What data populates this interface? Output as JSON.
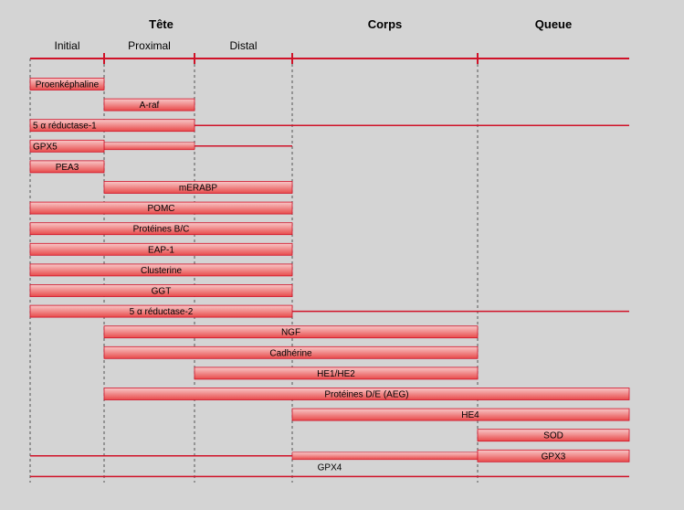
{
  "regions": [
    {
      "label": "Tête",
      "from": 0,
      "to": 3
    },
    {
      "label": "Corps",
      "from": 3,
      "to": 4
    },
    {
      "label": "Queue",
      "from": 4,
      "to": 5
    }
  ],
  "segments": [
    {
      "label": "Initial",
      "from": 0,
      "to": 1
    },
    {
      "label": "Proximal",
      "from": 1,
      "to": 2
    },
    {
      "label": "Distal",
      "from": 2,
      "to": 3
    }
  ],
  "colors": {
    "line": "#d01228",
    "bar_top": "#f8c8c8",
    "bar_bottom": "#e84a4a",
    "background": "#d4d4d4"
  },
  "rows": [
    {
      "label": "Proenképhaline",
      "bar": [
        0,
        1
      ],
      "label_pos": "bar"
    },
    {
      "label": "A-raf",
      "bar": [
        1,
        2
      ],
      "label_pos": "bar"
    },
    {
      "label": "5 α réductase-1",
      "bar": [
        0,
        2
      ],
      "line": [
        2,
        5
      ],
      "label_pos": "left"
    },
    {
      "label": "GPX5",
      "bar": [
        0,
        1
      ],
      "thin": [
        1,
        2
      ],
      "line": [
        2,
        3
      ],
      "label_pos": "left"
    },
    {
      "label": "PEA3",
      "bar": [
        0,
        1
      ],
      "label_pos": "bar"
    },
    {
      "label": "mERABP",
      "bar": [
        1,
        3
      ],
      "label_pos": "bar"
    },
    {
      "label": "POMC",
      "bar": [
        0,
        3
      ],
      "label_pos": "bar"
    },
    {
      "label": "Protéines B/C",
      "bar": [
        0,
        3
      ],
      "label_pos": "bar"
    },
    {
      "label": "EAP-1",
      "bar": [
        0,
        3
      ],
      "label_pos": "bar"
    },
    {
      "label": "Clusterine",
      "bar": [
        0,
        3
      ],
      "label_pos": "bar"
    },
    {
      "label": "GGT",
      "bar": [
        0,
        3
      ],
      "label_pos": "bar"
    },
    {
      "label": "5 α réductase-2",
      "bar": [
        0,
        3
      ],
      "line": [
        3,
        5
      ],
      "label_pos": "bar"
    },
    {
      "label": "NGF",
      "bar": [
        1,
        4
      ],
      "label_pos": "bar"
    },
    {
      "label": "Cadhérine",
      "bar": [
        1,
        4
      ],
      "label_pos": "bar"
    },
    {
      "label": "HE1/HE2",
      "bar": [
        2,
        4
      ],
      "label_pos": "bar"
    },
    {
      "label": "Protéines D/E (AEG)",
      "bar": [
        1,
        5
      ],
      "label_pos": "bar"
    },
    {
      "label": "HE4",
      "bar": [
        3,
        5
      ],
      "label_pos": "right"
    },
    {
      "label": "SOD",
      "bar": [
        4,
        5
      ],
      "label_pos": "bar"
    },
    {
      "label": "GPX3",
      "line": [
        0,
        3
      ],
      "thin": [
        3,
        4
      ],
      "bar": [
        4,
        5
      ],
      "label_pos": "bar"
    },
    {
      "label": "GPX4",
      "line": [
        0,
        5
      ],
      "label_pos": "above-line"
    }
  ]
}
